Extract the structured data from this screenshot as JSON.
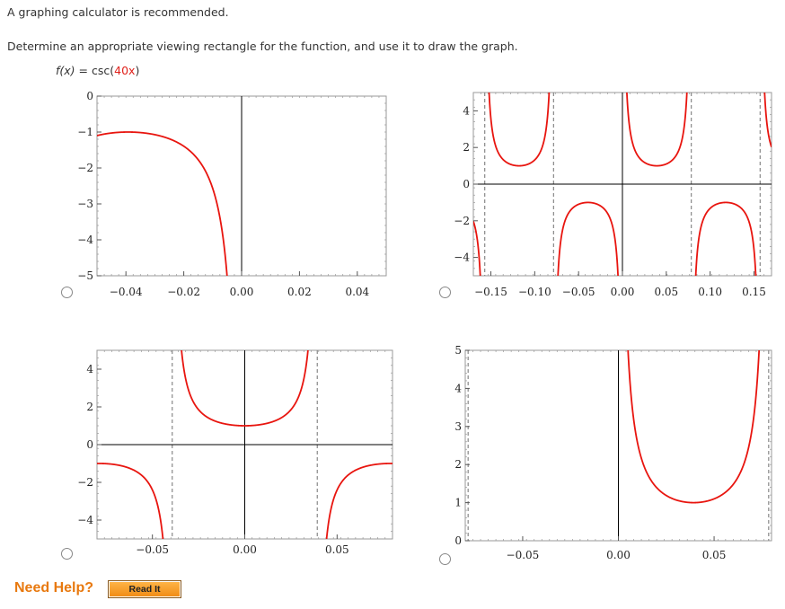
{
  "intro_text": "A graphing calculator is recommended.",
  "instruction": "Determine an appropriate viewing rectangle for the function, and use it to draw the graph.",
  "function": {
    "lhs": "f(x)",
    "eq": " = csc(",
    "arg": "40x",
    "close": ")"
  },
  "colors": {
    "curve": "#e8150f",
    "axis": "#000000",
    "asymptote": "#888888",
    "accent": "#e0211b"
  },
  "options": [
    {
      "id": "A",
      "selected": false
    },
    {
      "id": "B",
      "selected": false
    },
    {
      "id": "C",
      "selected": false
    },
    {
      "id": "D",
      "selected": false
    }
  ],
  "chart_data": [
    {
      "type": "line",
      "title": "",
      "function": "csc(40x)",
      "xlim": [
        -0.05,
        0.05
      ],
      "ylim": [
        -5,
        0
      ],
      "x_ticks": [
        "-0.04",
        "-0.02",
        "0.00",
        "0.02",
        "0.04"
      ],
      "y_ticks": [
        "0",
        "-1",
        "-2",
        "-3",
        "-4",
        "-5"
      ],
      "asymptotes": [
        0
      ]
    },
    {
      "type": "line",
      "title": "",
      "function": "csc(40x)",
      "xlim": [
        -0.17,
        0.17
      ],
      "ylim": [
        -5,
        5
      ],
      "x_ticks": [
        "-0.15",
        "-0.10",
        "-0.05",
        "0.00",
        "0.05",
        "0.10",
        "0.15"
      ],
      "y_ticks": [
        "4",
        "2",
        "0",
        "-2",
        "-4"
      ],
      "asymptotes": [
        -0.157,
        -0.0785,
        0,
        0.0785,
        0.157
      ]
    },
    {
      "type": "line",
      "title": "",
      "function": "sec(40x)",
      "xlim": [
        -0.08,
        0.08
      ],
      "ylim": [
        -5,
        5
      ],
      "x_ticks": [
        "-0.05",
        "0.00",
        "0.05"
      ],
      "y_ticks": [
        "4",
        "2",
        "0",
        "-2",
        "-4"
      ],
      "asymptotes": [
        -0.03927,
        0.03927
      ]
    },
    {
      "type": "line",
      "title": "",
      "function": "csc(40x)",
      "xlim": [
        -0.08,
        0.08
      ],
      "ylim": [
        0,
        5
      ],
      "x_ticks": [
        "-0.05",
        "0.00",
        "0.05"
      ],
      "y_ticks": [
        "5",
        "4",
        "3",
        "2",
        "1",
        "0"
      ],
      "asymptotes": [
        -0.0785,
        0,
        0.0785
      ]
    }
  ],
  "help": {
    "label": "Need Help?",
    "read_it": "Read It"
  }
}
